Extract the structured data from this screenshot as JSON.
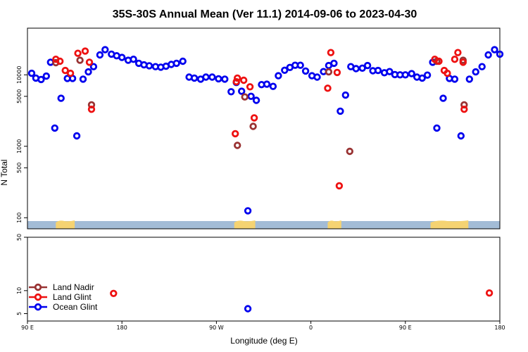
{
  "chart_data": {
    "type": "scatter",
    "title": "35S-30S Annual Mean (Ver 11.1)   2014-09-06 to 2023-04-30",
    "xlabel": "Longitude (deg E)",
    "ylabel": "N Total",
    "xlim": [
      90,
      540
    ],
    "x_ticks": [
      {
        "value": 90,
        "label": "90 E"
      },
      {
        "value": 180,
        "label": "180"
      },
      {
        "value": 270,
        "label": "90 W"
      },
      {
        "value": 360,
        "label": "0"
      },
      {
        "value": 450,
        "label": "90 E"
      },
      {
        "value": 540,
        "label": "180"
      }
    ],
    "y_scale": "log",
    "upper_panel": {
      "ylim": [
        70,
        45000
      ],
      "y_ticks": [
        {
          "value": 100,
          "label": "100"
        },
        {
          "value": 500,
          "label": "500"
        },
        {
          "value": 1000,
          "label": "1000"
        },
        {
          "value": 5000,
          "label": "5000"
        },
        {
          "value": 10000,
          "label": "10000"
        }
      ]
    },
    "lower_panel": {
      "ylim": [
        4,
        50
      ],
      "y_ticks": [
        {
          "value": 5,
          "label": "5"
        },
        {
          "value": 10,
          "label": "10"
        },
        {
          "value": 50,
          "label": "50"
        }
      ]
    },
    "land_mask_segments": [
      [
        117,
        135
      ],
      [
        287,
        307
      ],
      [
        376,
        389
      ],
      [
        474,
        510
      ]
    ],
    "legend": {
      "position": "bottom-left"
    },
    "series": [
      {
        "name": "Land Nadir",
        "color": "#993333",
        "points": [
          [
            117,
            14800
          ],
          [
            140,
            16000
          ],
          [
            151,
            3800
          ],
          [
            290,
            1030
          ],
          [
            297,
            4900
          ],
          [
            305,
            1900
          ],
          [
            377,
            11000
          ],
          [
            397,
            850
          ],
          [
            480,
            15500
          ],
          [
            505,
            16000
          ],
          [
            506,
            3800
          ]
        ]
      },
      {
        "name": "Land Glint",
        "color": "#ee1111",
        "points": [
          [
            117,
            16500
          ],
          [
            121,
            15500
          ],
          [
            126,
            11500
          ],
          [
            131,
            10500
          ],
          [
            138,
            20000
          ],
          [
            145,
            21500
          ],
          [
            149,
            15000
          ],
          [
            151,
            3300
          ],
          [
            288,
            1500
          ],
          [
            289,
            8000
          ],
          [
            290,
            9000
          ],
          [
            296,
            8400
          ],
          [
            302,
            6800
          ],
          [
            306,
            2500
          ],
          [
            376,
            6500
          ],
          [
            379,
            20500
          ],
          [
            385,
            10800
          ],
          [
            387,
            280
          ],
          [
            478,
            16500
          ],
          [
            482,
            15500
          ],
          [
            487,
            11500
          ],
          [
            490,
            10500
          ],
          [
            497,
            16500
          ],
          [
            500,
            20500
          ],
          [
            505,
            15000
          ],
          [
            506,
            3300
          ]
        ]
      },
      {
        "name": "Ocean Glint",
        "color": "#0000ee",
        "points": [
          [
            94,
            10500
          ],
          [
            98,
            9000
          ],
          [
            103,
            8600
          ],
          [
            108,
            9600
          ],
          [
            112,
            15000
          ],
          [
            116,
            1800
          ],
          [
            122,
            4700
          ],
          [
            128,
            8900
          ],
          [
            133,
            8900
          ],
          [
            137,
            1400
          ],
          [
            143,
            8700
          ],
          [
            148,
            11000
          ],
          [
            153,
            13000
          ],
          [
            159,
            19000
          ],
          [
            164,
            22500
          ],
          [
            170,
            19500
          ],
          [
            175,
            18500
          ],
          [
            180,
            17500
          ],
          [
            186,
            16000
          ],
          [
            191,
            16500
          ],
          [
            196,
            14500
          ],
          [
            201,
            13800
          ],
          [
            206,
            13400
          ],
          [
            212,
            13000
          ],
          [
            217,
            12800
          ],
          [
            222,
            13200
          ],
          [
            227,
            14000
          ],
          [
            232,
            14500
          ],
          [
            238,
            15500
          ],
          [
            244,
            9300
          ],
          [
            249,
            9000
          ],
          [
            255,
            8700
          ],
          [
            260,
            9300
          ],
          [
            266,
            9300
          ],
          [
            272,
            8800
          ],
          [
            278,
            8700
          ],
          [
            284,
            5800
          ],
          [
            289,
            7800
          ],
          [
            294,
            5900
          ],
          [
            303,
            5000
          ],
          [
            308,
            4400
          ],
          [
            313,
            7300
          ],
          [
            318,
            7400
          ],
          [
            324,
            6900
          ],
          [
            329,
            9700
          ],
          [
            335,
            11600
          ],
          [
            340,
            12700
          ],
          [
            345,
            13600
          ],
          [
            350,
            13600
          ],
          [
            355,
            11300
          ],
          [
            361,
            9700
          ],
          [
            366,
            9300
          ],
          [
            372,
            11100
          ],
          [
            377,
            13500
          ],
          [
            382,
            14500
          ],
          [
            388,
            3100
          ],
          [
            393,
            5200
          ],
          [
            398,
            13000
          ],
          [
            403,
            12200
          ],
          [
            409,
            12400
          ],
          [
            414,
            13500
          ],
          [
            419,
            11400
          ],
          [
            424,
            11500
          ],
          [
            430,
            10700
          ],
          [
            435,
            11100
          ],
          [
            440,
            10100
          ],
          [
            445,
            10000
          ],
          [
            450,
            10000
          ],
          [
            456,
            10400
          ],
          [
            461,
            9300
          ],
          [
            466,
            9000
          ],
          [
            471,
            9900
          ],
          [
            476,
            15000
          ],
          [
            480,
            1800
          ],
          [
            486,
            4700
          ],
          [
            492,
            8900
          ],
          [
            497,
            8700
          ],
          [
            503,
            1400
          ],
          [
            511,
            8700
          ],
          [
            517,
            11000
          ],
          [
            523,
            13000
          ],
          [
            529,
            19000
          ],
          [
            535,
            22500
          ],
          [
            540,
            19500
          ],
          [
            300,
            125
          ]
        ],
        "lower_panel_points": [
          [
            300,
            5.8
          ]
        ]
      }
    ],
    "lower_panel_series": [
      {
        "name": "Land Glint",
        "points": [
          [
            172,
            9.2
          ],
          [
            530,
            9.3
          ]
        ]
      }
    ]
  }
}
